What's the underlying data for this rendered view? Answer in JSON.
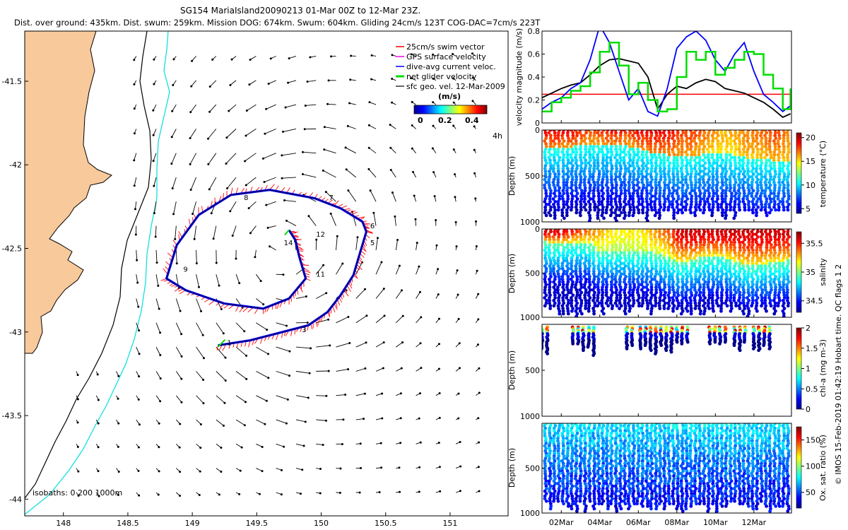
{
  "header": {
    "title": "SG154 MariaIsland20090213 01-Mar 00Z to 12-Mar 23Z.",
    "subtitle": "Dist. over ground: 435km. Dist. swum: 259km. Mission DOG: 674km. Swum: 604km. Gliding 24cm/s 123T COG-DAC=7cm/s 223T"
  },
  "colors": {
    "land": "#f8c99b",
    "coast": "#000000",
    "isobath200": "#000000",
    "isobath1000": "#00dddd",
    "swim": "#ff0000",
    "gps": "#ff00ff",
    "dac": "#0000ff",
    "net": "#00dd00",
    "sfc": "#000000"
  },
  "chart_data": [
    {
      "id": "map",
      "type": "scatter",
      "title": "glider track map",
      "x_ticks": [
        "148",
        "148.5",
        "149",
        "149.5",
        "150",
        "150.5",
        "151"
      ],
      "y_ticks": [
        "-41.5",
        "-42",
        "-42.5",
        "-43",
        "-43.5",
        "-44"
      ],
      "xlim": [
        147.7,
        151.45
      ],
      "ylim": [
        -44.1,
        -41.2
      ],
      "legend": [
        {
          "label": "25cm/s swim vector",
          "color": "#ff0000"
        },
        {
          "label": "GPS surface velocity",
          "color": "#ff00ff"
        },
        {
          "label": "dive-avg current veloc.",
          "color": "#0000ff"
        },
        {
          "label": "net glider velocity",
          "color": "#00dd00"
        },
        {
          "label": "sfc geo. vel. 12-Mar-2009",
          "color": "#000000"
        }
      ],
      "colorbar": {
        "title": "(m/s)",
        "ticks": [
          "0",
          "0.2",
          "0.4"
        ],
        "range": [
          0,
          0.45
        ]
      },
      "scale_label": "4h",
      "isobath_note": "isobaths: 0   200   1000m",
      "day_labels": [
        {
          "text": "1",
          "lon": 149.27,
          "lat": -43.08
        },
        {
          "text": "3",
          "lon": 149.85,
          "lat": -43.0
        },
        {
          "text": "5",
          "lon": 150.38,
          "lat": -42.48
        },
        {
          "text": "6",
          "lon": 150.38,
          "lat": -42.38
        },
        {
          "text": "7",
          "lon": 150.06,
          "lat": -42.21
        },
        {
          "text": "8",
          "lon": 149.4,
          "lat": -42.21
        },
        {
          "text": "9",
          "lon": 148.93,
          "lat": -42.64
        },
        {
          "text": "11",
          "lon": 149.96,
          "lat": -42.67
        },
        {
          "text": "12",
          "lon": 149.96,
          "lat": -42.43
        },
        {
          "text": "14",
          "lon": 149.71,
          "lat": -42.48
        }
      ],
      "track": [
        [
          149.2,
          -43.08
        ],
        [
          149.45,
          -43.05
        ],
        [
          149.7,
          -43.0
        ],
        [
          149.9,
          -42.96
        ],
        [
          150.05,
          -42.88
        ],
        [
          150.15,
          -42.78
        ],
        [
          150.25,
          -42.66
        ],
        [
          150.3,
          -42.53
        ],
        [
          150.35,
          -42.4
        ],
        [
          150.32,
          -42.34
        ],
        [
          150.15,
          -42.26
        ],
        [
          149.95,
          -42.2
        ],
        [
          149.6,
          -42.15
        ],
        [
          149.3,
          -42.18
        ],
        [
          149.05,
          -42.3
        ],
        [
          148.88,
          -42.48
        ],
        [
          148.8,
          -42.68
        ],
        [
          148.95,
          -42.75
        ],
        [
          149.25,
          -42.83
        ],
        [
          149.55,
          -42.86
        ],
        [
          149.75,
          -42.8
        ],
        [
          149.88,
          -42.68
        ],
        [
          149.83,
          -42.55
        ],
        [
          149.8,
          -42.45
        ],
        [
          149.75,
          -42.39
        ]
      ]
    },
    {
      "id": "velocity",
      "type": "line",
      "ylabel": "velocity magnitude (m/s)",
      "ylim": [
        0,
        0.8
      ],
      "y_ticks": [
        "0",
        "0.2",
        "0.4",
        "0.6",
        "0.8"
      ],
      "x": [
        0,
        0.5,
        1,
        1.5,
        2,
        2.5,
        3,
        3.5,
        4,
        4.5,
        5,
        5.5,
        6,
        6.5,
        7,
        7.5,
        8,
        8.5,
        9,
        9.5,
        10,
        10.5,
        11,
        11.5,
        12,
        12.5,
        12.9
      ],
      "series": [
        {
          "name": "net glider velocity",
          "color": "#00dd00",
          "width": 2.5,
          "values": [
            0.1,
            0.18,
            0.22,
            0.28,
            0.32,
            0.44,
            0.62,
            0.7,
            0.5,
            0.25,
            0.35,
            0.2,
            0.1,
            0.12,
            0.4,
            0.62,
            0.55,
            0.62,
            0.42,
            0.48,
            0.55,
            0.62,
            0.6,
            0.42,
            0.3,
            0.12,
            0.3
          ]
        },
        {
          "name": "dive-avg current veloc.",
          "color": "#0000ff",
          "width": 1.8,
          "values": [
            0.12,
            0.18,
            0.22,
            0.3,
            0.35,
            0.55,
            0.85,
            0.7,
            0.45,
            0.2,
            0.3,
            0.1,
            0.06,
            0.3,
            0.65,
            0.75,
            0.8,
            0.72,
            0.55,
            0.45,
            0.6,
            0.7,
            0.45,
            0.25,
            0.18,
            0.1,
            0.15
          ]
        },
        {
          "name": "sfc geo. vel.",
          "color": "#000000",
          "width": 1.8,
          "values": [
            0.22,
            0.26,
            0.3,
            0.33,
            0.35,
            0.42,
            0.5,
            0.55,
            0.56,
            0.54,
            0.52,
            0.4,
            0.12,
            0.25,
            0.32,
            0.3,
            0.35,
            0.38,
            0.36,
            0.3,
            0.28,
            0.26,
            0.22,
            0.18,
            0.12,
            0.05,
            0.08
          ]
        },
        {
          "name": "25cm/s swim vector",
          "color": "#ff0000",
          "width": 1.5,
          "values": [
            0.25,
            0.25,
            0.25,
            0.25,
            0.25,
            0.25,
            0.25,
            0.25,
            0.25,
            0.25,
            0.25,
            0.25,
            0.25,
            0.25,
            0.25,
            0.25,
            0.25,
            0.25,
            0.25,
            0.25,
            0.25,
            0.25,
            0.25,
            0.25,
            0.25,
            0.25,
            0.25
          ]
        }
      ]
    },
    {
      "id": "temperature",
      "type": "heatmap",
      "ylabel": "Depth (m)",
      "y_ticks": [
        "0",
        "500",
        "1000"
      ],
      "ylim": [
        0,
        1000
      ],
      "colorbar_label": "temperature (°C)",
      "colorbar_ticks": [
        "5",
        "10",
        "15",
        "20"
      ],
      "crange": [
        4,
        21
      ],
      "surface": [
        19,
        19,
        19,
        18,
        18,
        19,
        18,
        19,
        19,
        19,
        18,
        18,
        17,
        16,
        16,
        17,
        17,
        18,
        17
      ],
      "thermocline_depth": [
        190,
        200,
        180,
        170,
        150,
        170,
        180,
        200,
        260,
        270,
        300,
        290,
        250,
        240,
        280,
        300,
        320,
        330,
        340
      ],
      "dives": 56
    },
    {
      "id": "salinity",
      "type": "heatmap",
      "ylabel": "Depth (m)",
      "y_ticks": [
        "0",
        "500",
        "1000"
      ],
      "ylim": [
        0,
        1000
      ],
      "colorbar_label": "salinity",
      "colorbar_ticks": [
        "34.5",
        "35",
        "35.5"
      ],
      "crange": [
        34.3,
        35.7
      ],
      "surface": [
        35.6,
        35.6,
        35.5,
        35.4,
        35.3,
        35.2,
        35.2,
        35.2,
        35.3,
        35.4,
        35.6,
        35.6,
        35.6,
        35.6,
        35.6,
        35.6,
        35.6,
        35.6,
        35.6
      ],
      "halocline_depth": [
        150,
        170,
        160,
        150,
        250,
        240,
        250,
        260,
        270,
        320,
        380,
        350,
        300,
        310,
        360,
        420,
        400,
        380,
        360
      ],
      "dives": 56
    },
    {
      "id": "chla",
      "type": "heatmap",
      "ylabel": "Depth (m)",
      "y_ticks": [
        "500",
        "1000"
      ],
      "ylim": [
        0,
        1000
      ],
      "colorbar_label": "chl-a (mg m-3)",
      "colorbar_ticks": [
        "0",
        "0.5",
        "1",
        "1.5",
        "2"
      ],
      "crange": [
        0,
        2
      ],
      "profile_groups": [
        [
          0.0,
          0.5
        ],
        [
          1.6,
          2.8
        ],
        [
          4.4,
          4.8
        ],
        [
          5.1,
          6.8
        ],
        [
          7.0,
          7.6
        ],
        [
          8.7,
          9.7
        ],
        [
          10.0,
          10.8
        ],
        [
          11.0,
          12.0
        ]
      ],
      "profile_depth": 300
    },
    {
      "id": "oxygen",
      "type": "heatmap",
      "ylabel": "Depth (m)",
      "y_ticks": [
        "500",
        "1000"
      ],
      "ylim": [
        0,
        1000
      ],
      "colorbar_label": "Ox. sat. ratio (%)",
      "colorbar_ticks": [
        "50",
        "100",
        "150"
      ],
      "crange": [
        20,
        175
      ],
      "dives": 56
    }
  ],
  "time_axis": {
    "ticks": [
      "02Mar",
      "04Mar",
      "06Mar",
      "08Mar",
      "10Mar",
      "12Mar"
    ],
    "positions": [
      1,
      3,
      5,
      7,
      9,
      11
    ],
    "range": [
      0,
      12.95
    ]
  },
  "side_note": "© IMOS 15-Feb-2019 01:42:19 Hobart time. QC flags 1 2"
}
